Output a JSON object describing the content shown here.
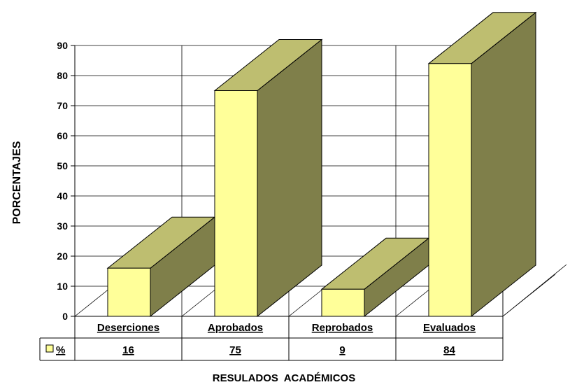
{
  "chart_data": {
    "type": "bar",
    "title": "",
    "xlabel": "RESULADOS  ACADÉMICOS",
    "ylabel": "PORCENTAJES",
    "ylim": [
      0,
      90
    ],
    "yticks": [
      "0",
      "10",
      "20",
      "30",
      "40",
      "50",
      "60",
      "70",
      "80",
      "90"
    ],
    "categories": [
      "Deserciones",
      "Aprobados",
      "Reprobados",
      "Evaluados"
    ],
    "series": [
      {
        "name": "%",
        "values": [
          16,
          75,
          9,
          84
        ],
        "table_labels": [
          "16",
          "75",
          "9",
          "84"
        ]
      }
    ],
    "grid": true,
    "legend": "data-table",
    "colors": {
      "front": "#FFFF99",
      "top": "#BEBE70",
      "side": "#7F7F4A",
      "edge": "#000000"
    }
  }
}
